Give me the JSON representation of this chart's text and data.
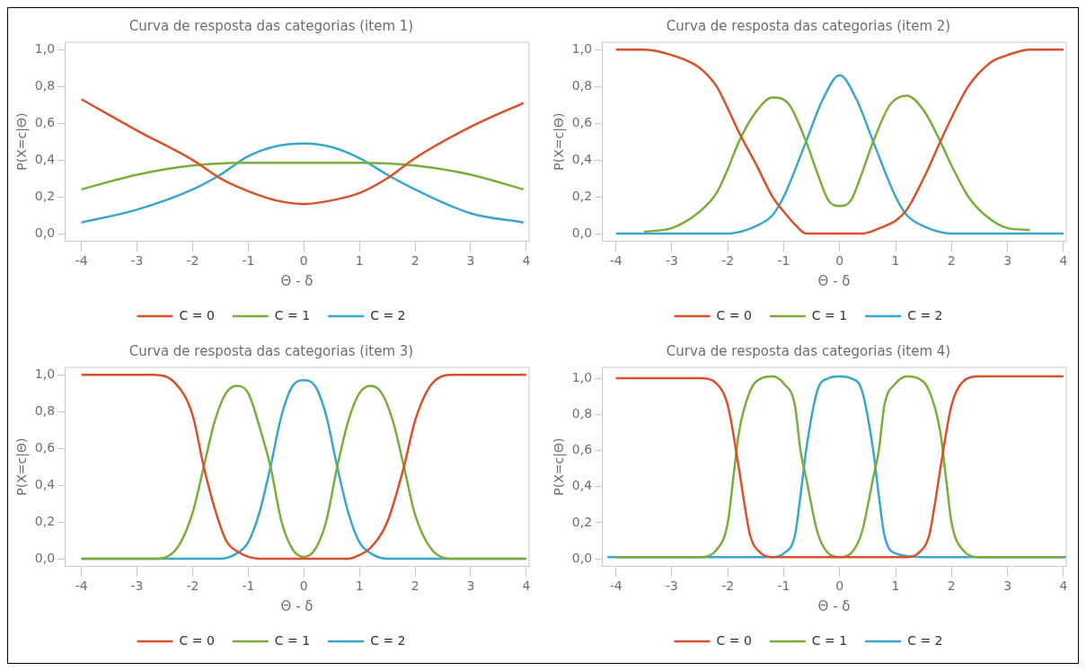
{
  "chart_data": [
    {
      "type": "line",
      "title": "Curva de resposta das categorias (item 1)",
      "xlabel": "Θ - δ",
      "ylabel": "P(X=c|Θ)",
      "xlim": [
        -4.3,
        4.05
      ],
      "xticks": [
        -4,
        -3,
        -2,
        -1,
        0,
        1,
        2,
        3,
        4
      ],
      "ylim": [
        -0.04,
        1.04
      ],
      "yticks": [
        {
          "value": 0,
          "label": "0,0"
        },
        {
          "value": 0.2,
          "label": "0,2"
        },
        {
          "value": 0.4,
          "label": "0,4"
        },
        {
          "value": 0.6,
          "label": "0,6"
        },
        {
          "value": 0.8,
          "label": "0,8"
        },
        {
          "value": 1,
          "label": "1,0"
        }
      ],
      "grid": false,
      "legend": "bottom",
      "marker": "none",
      "line_style": "solid",
      "series": [
        {
          "name": "C = 0",
          "color": "#d9512c",
          "x": [
            -4,
            -3,
            -2,
            -1.5,
            -1,
            -0.5,
            0,
            0.5,
            1,
            1.5,
            2,
            3,
            3.95
          ],
          "values": [
            0.73,
            0.56,
            0.4,
            0.3,
            0.23,
            0.18,
            0.16,
            0.18,
            0.22,
            0.3,
            0.41,
            0.58,
            0.71
          ]
        },
        {
          "name": "C = 1",
          "color": "#7cac3a",
          "x": [
            -4,
            -3,
            -2,
            -1,
            0,
            1,
            2,
            3,
            3.95
          ],
          "values": [
            0.24,
            0.32,
            0.37,
            0.385,
            0.385,
            0.385,
            0.37,
            0.32,
            0.24
          ]
        },
        {
          "name": "C = 2",
          "color": "#3aa6cc",
          "x": [
            -4,
            -3,
            -2,
            -1.5,
            -1,
            -0.5,
            0,
            0.5,
            1,
            1.5,
            2,
            3,
            3.95
          ],
          "values": [
            0.06,
            0.13,
            0.24,
            0.32,
            0.42,
            0.475,
            0.49,
            0.47,
            0.41,
            0.32,
            0.24,
            0.11,
            0.06
          ]
        }
      ]
    },
    {
      "type": "line",
      "title": "Curva de resposta das categorias (item 2)",
      "xlabel": "Θ - δ",
      "ylabel": "P(X=c|Θ)",
      "xlim": [
        -4.25,
        4.05
      ],
      "xticks": [
        -4,
        -3,
        -2,
        -1,
        0,
        1,
        2,
        3,
        4
      ],
      "ylim": [
        -0.04,
        1.04
      ],
      "yticks": [
        {
          "value": 0,
          "label": "0,0"
        },
        {
          "value": 0.2,
          "label": "0,2"
        },
        {
          "value": 0.4,
          "label": "0,4"
        },
        {
          "value": 0.6,
          "label": "0,6"
        },
        {
          "value": 0.8,
          "label": "0,8"
        },
        {
          "value": 1,
          "label": "1,0"
        }
      ],
      "grid": false,
      "legend": "bottom",
      "marker": "none",
      "line_style": "solid",
      "series": [
        {
          "name": "C = 0",
          "color": "#d9512c",
          "x": [
            -4,
            -3.5,
            -3,
            -2.5,
            -2.2,
            -2,
            -1.8,
            -1.5,
            -1.2,
            -1,
            -0.8,
            -0.6,
            0,
            0.4,
            0.8,
            1,
            1.2,
            1.5,
            1.8,
            2,
            2.3,
            2.7,
            3,
            3.4,
            4
          ],
          "values": [
            1,
            1,
            0.97,
            0.9,
            0.8,
            0.68,
            0.55,
            0.38,
            0.2,
            0.12,
            0.05,
            0,
            0,
            0,
            0.04,
            0.07,
            0.13,
            0.3,
            0.5,
            0.63,
            0.8,
            0.93,
            0.97,
            1,
            1
          ]
        },
        {
          "name": "C = 1",
          "color": "#7cac3a",
          "x": [
            -3.5,
            -3,
            -2.5,
            -2.2,
            -2,
            -1.8,
            -1.5,
            -1.2,
            -0.9,
            -0.6,
            -0.4,
            -0.2,
            0,
            0.2,
            0.4,
            0.6,
            0.9,
            1.2,
            1.5,
            1.8,
            2,
            2.3,
            2.6,
            3,
            3.4
          ],
          "values": [
            0.01,
            0.03,
            0.12,
            0.22,
            0.35,
            0.5,
            0.66,
            0.74,
            0.7,
            0.5,
            0.33,
            0.18,
            0.15,
            0.18,
            0.33,
            0.5,
            0.7,
            0.75,
            0.67,
            0.5,
            0.37,
            0.2,
            0.1,
            0.03,
            0.02
          ]
        },
        {
          "name": "C = 2",
          "color": "#3aa6cc",
          "x": [
            -4,
            -2,
            -1.5,
            -1.2,
            -1,
            -0.6,
            -0.3,
            0,
            0.3,
            0.6,
            1,
            1.2,
            1.5,
            2,
            4
          ],
          "values": [
            0,
            0,
            0.04,
            0.1,
            0.2,
            0.5,
            0.73,
            0.86,
            0.73,
            0.5,
            0.2,
            0.1,
            0.04,
            0,
            0
          ]
        }
      ]
    },
    {
      "type": "line",
      "title": "Curva de resposta das categorias (item 3)",
      "xlabel": "Θ - δ",
      "ylabel": "P(X=c|Θ)",
      "xlim": [
        -4.3,
        4.05
      ],
      "xticks": [
        -4,
        -3,
        -2,
        -1,
        0,
        1,
        2,
        3,
        4
      ],
      "ylim": [
        -0.04,
        1.04
      ],
      "yticks": [
        {
          "value": 0,
          "label": "0,0"
        },
        {
          "value": 0.2,
          "label": "0,2"
        },
        {
          "value": 0.4,
          "label": "0,4"
        },
        {
          "value": 0.6,
          "label": "0,6"
        },
        {
          "value": 0.8,
          "label": "0,8"
        },
        {
          "value": 1,
          "label": "1,0"
        }
      ],
      "grid": false,
      "legend": "bottom",
      "marker": "none",
      "line_style": "solid",
      "series": [
        {
          "name": "C = 0",
          "color": "#d9512c",
          "x": [
            -4,
            -2.7,
            -2.3,
            -2,
            -1.8,
            -1.6,
            -1.4,
            -1.2,
            -0.8,
            0.8,
            1,
            1.2,
            1.5,
            1.8,
            2,
            2.3,
            2.7,
            4
          ],
          "values": [
            1,
            1,
            0.95,
            0.78,
            0.5,
            0.27,
            0.1,
            0.04,
            0,
            0,
            0.02,
            0.06,
            0.2,
            0.5,
            0.75,
            0.95,
            1,
            1
          ]
        },
        {
          "name": "C = 1",
          "color": "#7cac3a",
          "x": [
            -4,
            -2.7,
            -2.3,
            -2,
            -1.8,
            -1.6,
            -1.4,
            -1.2,
            -1,
            -0.8,
            -0.6,
            -0.4,
            -0.2,
            0,
            0.2,
            0.4,
            0.6,
            0.8,
            1,
            1.2,
            1.4,
            1.6,
            1.8,
            2,
            2.3,
            2.7,
            4
          ],
          "values": [
            0,
            0,
            0.05,
            0.25,
            0.5,
            0.75,
            0.9,
            0.94,
            0.9,
            0.72,
            0.5,
            0.2,
            0.05,
            0.01,
            0.05,
            0.2,
            0.5,
            0.75,
            0.9,
            0.94,
            0.9,
            0.75,
            0.5,
            0.24,
            0.05,
            0,
            0
          ]
        },
        {
          "name": "C = 2",
          "color": "#3aa6cc",
          "x": [
            -4,
            -1.5,
            -1.2,
            -1,
            -0.8,
            -0.6,
            -0.4,
            -0.2,
            0,
            0.2,
            0.4,
            0.6,
            0.8,
            1,
            1.2,
            1.5,
            4
          ],
          "values": [
            0,
            0,
            0.03,
            0.09,
            0.25,
            0.5,
            0.78,
            0.94,
            0.97,
            0.94,
            0.78,
            0.5,
            0.25,
            0.09,
            0.03,
            0,
            0
          ]
        }
      ]
    },
    {
      "type": "line",
      "title": "Curva de resposta das categorias (item 4)",
      "xlabel": "Θ - δ",
      "ylabel": "P(X=c|Θ)",
      "xlim": [
        -4.25,
        4.05
      ],
      "xticks": [
        -4,
        -3,
        -2,
        -1,
        0,
        1,
        2,
        3,
        4
      ],
      "ylim": [
        -0.04,
        1.06
      ],
      "yticks": [
        {
          "value": 0,
          "label": "0,0"
        },
        {
          "value": 0.2,
          "label": "0,2"
        },
        {
          "value": 0.4,
          "label": "0,4"
        },
        {
          "value": 0.6,
          "label": "0,6"
        },
        {
          "value": 0.8,
          "label": "0,8"
        },
        {
          "value": 1,
          "label": "1,0"
        }
      ],
      "grid": false,
      "legend": "bottom",
      "marker": "none",
      "line_style": "solid",
      "series": [
        {
          "name": "C = 0",
          "color": "#d9512c",
          "x": [
            -4,
            -2.5,
            -2.2,
            -2,
            -1.8,
            -1.7,
            -1.6,
            -1.4,
            -1.2,
            1.2,
            1.4,
            1.6,
            1.7,
            1.8,
            2,
            2.2,
            2.5,
            4
          ],
          "values": [
            1,
            1,
            0.97,
            0.85,
            0.5,
            0.3,
            0.13,
            0.03,
            0.01,
            0.01,
            0.03,
            0.13,
            0.3,
            0.5,
            0.85,
            0.98,
            1.01,
            1.01
          ]
        },
        {
          "name": "C = 1",
          "color": "#7cac3a",
          "x": [
            -4,
            -2.5,
            -2.2,
            -2,
            -1.9,
            -1.8,
            -1.6,
            -1.4,
            -1.2,
            -1,
            -0.8,
            -0.7,
            -0.6,
            -0.4,
            -0.2,
            0,
            0.2,
            0.4,
            0.6,
            0.7,
            0.8,
            1,
            1.2,
            1.4,
            1.6,
            1.8,
            1.9,
            2,
            2.2,
            2.5,
            4
          ],
          "values": [
            0.01,
            0.01,
            0.05,
            0.2,
            0.45,
            0.7,
            0.93,
            1,
            1.01,
            0.97,
            0.85,
            0.6,
            0.45,
            0.15,
            0.03,
            0.01,
            0.03,
            0.15,
            0.45,
            0.6,
            0.85,
            0.97,
            1.01,
            1,
            0.93,
            0.7,
            0.45,
            0.2,
            0.05,
            0.01,
            0.01
          ]
        },
        {
          "name": "C = 2",
          "color": "#3aa6cc",
          "x": [
            -4.15,
            -1.2,
            -1,
            -0.8,
            -0.7,
            -0.6,
            -0.4,
            -0.2,
            0,
            0.2,
            0.4,
            0.6,
            0.7,
            0.8,
            1,
            1.5,
            4.05
          ],
          "values": [
            0.01,
            0.01,
            0.03,
            0.13,
            0.35,
            0.6,
            0.93,
            1,
            1.01,
            1,
            0.93,
            0.6,
            0.35,
            0.13,
            0.03,
            0.01,
            0.01
          ]
        }
      ]
    }
  ]
}
